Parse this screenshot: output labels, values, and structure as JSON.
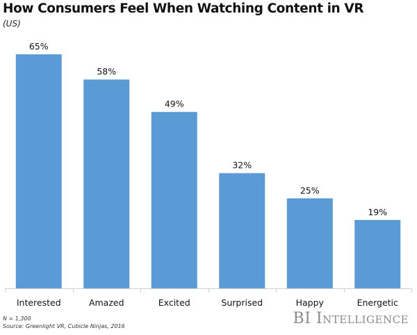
{
  "chart_data": {
    "type": "bar",
    "title": "How Consumers Feel When Watching Content in VR",
    "subtitle": "(US)",
    "categories": [
      "Interested",
      "Amazed",
      "Excited",
      "Surprised",
      "Happy",
      "Energetic"
    ],
    "values": [
      65,
      58,
      49,
      32,
      25,
      19
    ],
    "value_labels": [
      "65%",
      "58%",
      "49%",
      "32%",
      "25%",
      "19%"
    ],
    "unit": "%",
    "xlabel": "",
    "ylabel": "",
    "ylim": [
      0,
      65
    ],
    "grid": false,
    "bar_color": "#5b9bd5"
  },
  "footer": {
    "sample_size": "N = 1,300",
    "source": "Source: Greenlight VR, Cubicle Ninjas, 2016",
    "brand": "BI Intelligence"
  }
}
